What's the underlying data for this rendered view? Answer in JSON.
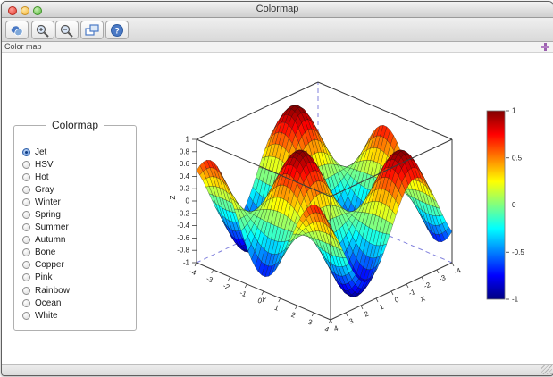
{
  "window": {
    "title": "Colormap",
    "controls": [
      "close",
      "minimize",
      "zoom"
    ]
  },
  "toolbar": {
    "buttons": [
      {
        "name": "rotate",
        "icon": "rotate-icon"
      },
      {
        "name": "zoom-in",
        "icon": "zoom-in-icon"
      },
      {
        "name": "zoom-out",
        "icon": "zoom-out-icon"
      },
      {
        "name": "original-view",
        "icon": "original-view-icon"
      },
      {
        "name": "help",
        "icon": "help-icon"
      }
    ]
  },
  "dock_bar": {
    "label": "Color map",
    "pin_icon": "dock-pin-icon"
  },
  "panel": {
    "title": "Colormap",
    "options": [
      {
        "label": "Jet",
        "selected": true
      },
      {
        "label": "HSV",
        "selected": false
      },
      {
        "label": "Hot",
        "selected": false
      },
      {
        "label": "Gray",
        "selected": false
      },
      {
        "label": "Winter",
        "selected": false
      },
      {
        "label": "Spring",
        "selected": false
      },
      {
        "label": "Summer",
        "selected": false
      },
      {
        "label": "Autumn",
        "selected": false
      },
      {
        "label": "Bone",
        "selected": false
      },
      {
        "label": "Copper",
        "selected": false
      },
      {
        "label": "Pink",
        "selected": false
      },
      {
        "label": "Rainbow",
        "selected": false
      },
      {
        "label": "Ocean",
        "selected": false
      },
      {
        "label": "White",
        "selected": false
      }
    ]
  },
  "chart_data": {
    "type": "surface3d",
    "title": "",
    "function": "z = sin(x)*cos(y)",
    "x_range": [
      -4,
      4
    ],
    "y_range": [
      -4,
      4
    ],
    "z_range": [
      -1,
      1
    ],
    "grid_points": 40,
    "colormap": "jet",
    "xlabel": "X",
    "ylabel": "Y",
    "zlabel": "Z",
    "x_ticks": [
      "4",
      "3",
      "2",
      "1",
      "0",
      "-1",
      "-2",
      "-3",
      "-4"
    ],
    "y_ticks": [
      "-4",
      "-3",
      "-2",
      "-1",
      "0",
      "1",
      "2",
      "3",
      "4"
    ],
    "z_ticks": [
      "1",
      "0.8",
      "0.6",
      "0.4",
      "0.2",
      "0",
      "-0.2",
      "-0.4",
      "-0.6",
      "-0.8",
      "-1"
    ],
    "colorbar": {
      "min": -1,
      "max": 1,
      "tick_labels": [
        "1",
        "0.5",
        "0",
        "-0.5",
        "-1"
      ]
    },
    "colors": {
      "hidden_edge_dashed": "#8080dd",
      "box_edge": "#3a3a3a",
      "mesh_line": "#111111",
      "tick_text": "#222222"
    }
  }
}
